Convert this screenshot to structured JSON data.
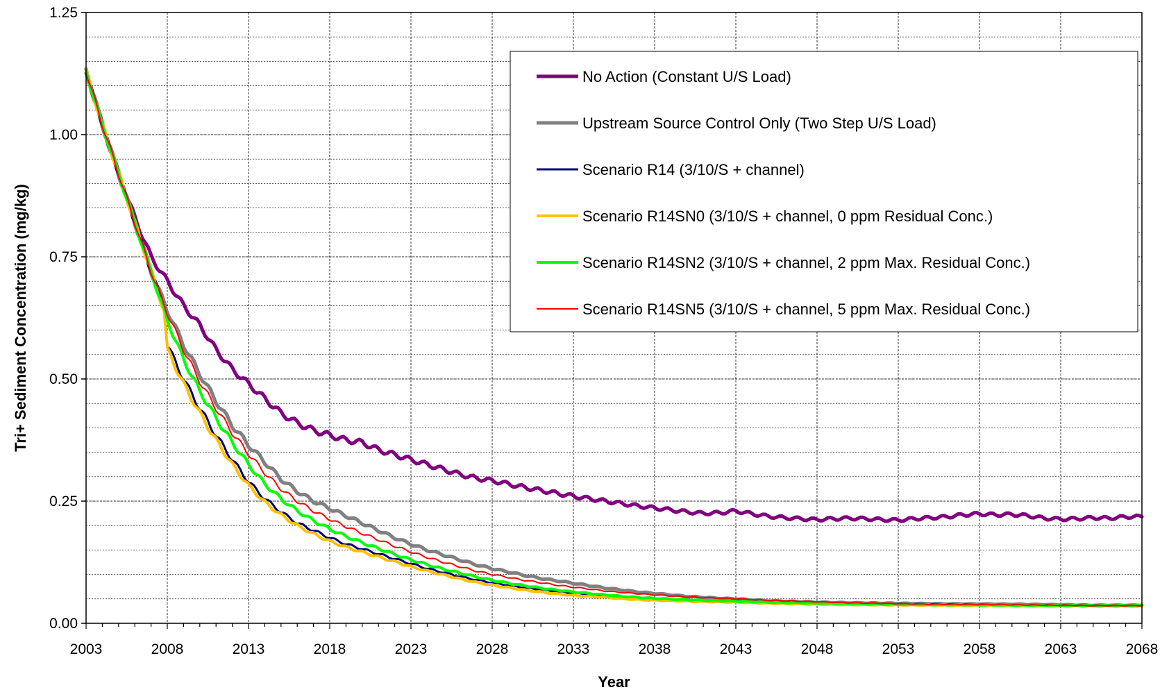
{
  "chart_data": {
    "type": "line",
    "title": "",
    "xlabel": "Year",
    "ylabel": "Tri+ Sediment Concentration (mg/kg)",
    "xlim": [
      2003,
      2068
    ],
    "ylim": [
      0,
      1.25
    ],
    "x_ticks": [
      "2003",
      "2008",
      "2013",
      "2018",
      "2023",
      "2028",
      "2033",
      "2038",
      "2043",
      "2048",
      "2053",
      "2058",
      "2063",
      "2068"
    ],
    "y_ticks": [
      "0.00",
      "0.25",
      "0.50",
      "0.75",
      "1.00",
      "1.25"
    ],
    "grid": true,
    "legend_position": "top-right",
    "series": [
      {
        "name": "No Action (Constant U/S Load)",
        "color": "#800080",
        "points": [
          [
            2003,
            1.13
          ],
          [
            2004,
            1.02
          ],
          [
            2005,
            0.92
          ],
          [
            2006,
            0.83
          ],
          [
            2007,
            0.75
          ],
          [
            2008,
            0.7
          ],
          [
            2009,
            0.65
          ],
          [
            2010,
            0.61
          ],
          [
            2011,
            0.56
          ],
          [
            2012,
            0.52
          ],
          [
            2013,
            0.49
          ],
          [
            2014,
            0.46
          ],
          [
            2015,
            0.43
          ],
          [
            2016,
            0.41
          ],
          [
            2017,
            0.395
          ],
          [
            2018,
            0.385
          ],
          [
            2019,
            0.375
          ],
          [
            2020,
            0.37
          ],
          [
            2021,
            0.355
          ],
          [
            2022,
            0.345
          ],
          [
            2023,
            0.335
          ],
          [
            2024,
            0.325
          ],
          [
            2025,
            0.315
          ],
          [
            2026,
            0.305
          ],
          [
            2027,
            0.297
          ],
          [
            2028,
            0.292
          ],
          [
            2029,
            0.285
          ],
          [
            2030,
            0.278
          ],
          [
            2031,
            0.272
          ],
          [
            2032,
            0.266
          ],
          [
            2033,
            0.26
          ],
          [
            2034,
            0.255
          ],
          [
            2035,
            0.25
          ],
          [
            2036,
            0.245
          ],
          [
            2037,
            0.24
          ],
          [
            2038,
            0.236
          ],
          [
            2039,
            0.232
          ],
          [
            2040,
            0.228
          ],
          [
            2041,
            0.225
          ],
          [
            2042,
            0.226
          ],
          [
            2043,
            0.23
          ],
          [
            2044,
            0.224
          ],
          [
            2045,
            0.219
          ],
          [
            2046,
            0.216
          ],
          [
            2047,
            0.214
          ],
          [
            2048,
            0.212
          ],
          [
            2049,
            0.214
          ],
          [
            2050,
            0.215
          ],
          [
            2051,
            0.214
          ],
          [
            2052,
            0.212
          ],
          [
            2053,
            0.211
          ],
          [
            2054,
            0.214
          ],
          [
            2055,
            0.216
          ],
          [
            2056,
            0.218
          ],
          [
            2057,
            0.222
          ],
          [
            2058,
            0.224
          ],
          [
            2059,
            0.222
          ],
          [
            2060,
            0.223
          ],
          [
            2061,
            0.22
          ],
          [
            2062,
            0.215
          ],
          [
            2063,
            0.213
          ],
          [
            2064,
            0.214
          ],
          [
            2065,
            0.216
          ],
          [
            2066,
            0.215
          ],
          [
            2067,
            0.218
          ],
          [
            2068,
            0.218
          ]
        ],
        "width": 5
      },
      {
        "name": "Upstream Source Control Only (Two Step U/S Load)",
        "color": "#808080",
        "points": [
          [
            2003,
            1.13
          ],
          [
            2004,
            1.02
          ],
          [
            2005,
            0.92
          ],
          [
            2006,
            0.82
          ],
          [
            2007,
            0.72
          ],
          [
            2008,
            0.64
          ],
          [
            2009,
            0.57
          ],
          [
            2010,
            0.51
          ],
          [
            2011,
            0.455
          ],
          [
            2012,
            0.405
          ],
          [
            2013,
            0.365
          ],
          [
            2014,
            0.33
          ],
          [
            2015,
            0.295
          ],
          [
            2016,
            0.27
          ],
          [
            2017,
            0.25
          ],
          [
            2018,
            0.235
          ],
          [
            2019,
            0.22
          ],
          [
            2020,
            0.205
          ],
          [
            2021,
            0.19
          ],
          [
            2022,
            0.175
          ],
          [
            2023,
            0.162
          ],
          [
            2024,
            0.15
          ],
          [
            2025,
            0.14
          ],
          [
            2026,
            0.13
          ],
          [
            2027,
            0.12
          ],
          [
            2028,
            0.112
          ],
          [
            2029,
            0.105
          ],
          [
            2030,
            0.098
          ],
          [
            2031,
            0.092
          ],
          [
            2032,
            0.087
          ],
          [
            2033,
            0.082
          ],
          [
            2034,
            0.077
          ],
          [
            2035,
            0.072
          ],
          [
            2036,
            0.068
          ],
          [
            2037,
            0.064
          ],
          [
            2038,
            0.061
          ],
          [
            2039,
            0.058
          ],
          [
            2040,
            0.055
          ],
          [
            2041,
            0.053
          ],
          [
            2042,
            0.051
          ],
          [
            2043,
            0.05
          ],
          [
            2044,
            0.048
          ],
          [
            2045,
            0.046
          ],
          [
            2046,
            0.045
          ],
          [
            2047,
            0.044
          ],
          [
            2048,
            0.043
          ],
          [
            2050,
            0.042
          ],
          [
            2055,
            0.04
          ],
          [
            2060,
            0.039
          ],
          [
            2065,
            0.037
          ],
          [
            2068,
            0.037
          ]
        ],
        "width": 5
      },
      {
        "name": "Scenario R14 (3/10/S + channel)",
        "color": "#000080",
        "points": [
          [
            2003,
            1.13
          ],
          [
            2004,
            1.02
          ],
          [
            2005,
            0.92
          ],
          [
            2006,
            0.82
          ],
          [
            2007,
            0.72
          ],
          [
            2007.8,
            0.65
          ],
          [
            2008,
            0.57
          ],
          [
            2009,
            0.5
          ],
          [
            2010,
            0.44
          ],
          [
            2011,
            0.385
          ],
          [
            2012,
            0.335
          ],
          [
            2013,
            0.29
          ],
          [
            2014,
            0.255
          ],
          [
            2015,
            0.228
          ],
          [
            2016,
            0.205
          ],
          [
            2017,
            0.19
          ],
          [
            2018,
            0.175
          ],
          [
            2019,
            0.162
          ],
          [
            2020,
            0.152
          ],
          [
            2021,
            0.142
          ],
          [
            2022,
            0.132
          ],
          [
            2023,
            0.122
          ],
          [
            2024,
            0.112
          ],
          [
            2025,
            0.104
          ],
          [
            2026,
            0.096
          ],
          [
            2027,
            0.089
          ],
          [
            2028,
            0.083
          ],
          [
            2029,
            0.078
          ],
          [
            2030,
            0.073
          ],
          [
            2031,
            0.069
          ],
          [
            2032,
            0.065
          ],
          [
            2033,
            0.062
          ],
          [
            2034,
            0.059
          ],
          [
            2035,
            0.056
          ],
          [
            2036,
            0.054
          ],
          [
            2037,
            0.052
          ],
          [
            2038,
            0.05
          ],
          [
            2040,
            0.047
          ],
          [
            2043,
            0.045
          ],
          [
            2045,
            0.043
          ],
          [
            2048,
            0.041
          ],
          [
            2050,
            0.04
          ],
          [
            2055,
            0.039
          ],
          [
            2060,
            0.037
          ],
          [
            2065,
            0.036
          ],
          [
            2068,
            0.035
          ]
        ],
        "width": 3
      },
      {
        "name": "Scenario R14SN0 (3/10/S + channel, 0 ppm Residual Conc.)",
        "color": "#FFC000",
        "points": [
          [
            2003,
            1.13
          ],
          [
            2004,
            1.02
          ],
          [
            2005,
            0.92
          ],
          [
            2006,
            0.82
          ],
          [
            2007,
            0.72
          ],
          [
            2007.8,
            0.64
          ],
          [
            2008,
            0.56
          ],
          [
            2009,
            0.49
          ],
          [
            2010,
            0.43
          ],
          [
            2011,
            0.375
          ],
          [
            2012,
            0.325
          ],
          [
            2013,
            0.282
          ],
          [
            2014,
            0.248
          ],
          [
            2015,
            0.222
          ],
          [
            2016,
            0.2
          ],
          [
            2017,
            0.183
          ],
          [
            2018,
            0.168
          ],
          [
            2019,
            0.156
          ],
          [
            2020,
            0.146
          ],
          [
            2021,
            0.136
          ],
          [
            2022,
            0.126
          ],
          [
            2023,
            0.116
          ],
          [
            2024,
            0.107
          ],
          [
            2025,
            0.099
          ],
          [
            2026,
            0.091
          ],
          [
            2027,
            0.084
          ],
          [
            2028,
            0.078
          ],
          [
            2029,
            0.073
          ],
          [
            2030,
            0.068
          ],
          [
            2031,
            0.064
          ],
          [
            2032,
            0.06
          ],
          [
            2033,
            0.057
          ],
          [
            2034,
            0.055
          ],
          [
            2035,
            0.053
          ],
          [
            2036,
            0.05
          ],
          [
            2038,
            0.047
          ],
          [
            2040,
            0.045
          ],
          [
            2043,
            0.043
          ],
          [
            2045,
            0.041
          ],
          [
            2048,
            0.039
          ],
          [
            2050,
            0.038
          ],
          [
            2055,
            0.037
          ],
          [
            2060,
            0.036
          ],
          [
            2065,
            0.035
          ],
          [
            2068,
            0.035
          ]
        ],
        "width": 4
      },
      {
        "name": "Scenario R14SN2 (3/10/S + channel, 2 ppm Max. Residual Conc.)",
        "color": "#00FF00",
        "points": [
          [
            2003,
            1.13
          ],
          [
            2004,
            1.02
          ],
          [
            2005,
            0.92
          ],
          [
            2006,
            0.82
          ],
          [
            2007,
            0.72
          ],
          [
            2008,
            0.62
          ],
          [
            2009,
            0.54
          ],
          [
            2010,
            0.475
          ],
          [
            2011,
            0.42
          ],
          [
            2012,
            0.37
          ],
          [
            2013,
            0.325
          ],
          [
            2014,
            0.285
          ],
          [
            2015,
            0.255
          ],
          [
            2016,
            0.23
          ],
          [
            2017,
            0.21
          ],
          [
            2018,
            0.193
          ],
          [
            2019,
            0.178
          ],
          [
            2020,
            0.165
          ],
          [
            2021,
            0.153
          ],
          [
            2022,
            0.141
          ],
          [
            2023,
            0.13
          ],
          [
            2024,
            0.12
          ],
          [
            2025,
            0.111
          ],
          [
            2026,
            0.103
          ],
          [
            2027,
            0.095
          ],
          [
            2028,
            0.088
          ],
          [
            2029,
            0.082
          ],
          [
            2030,
            0.077
          ],
          [
            2031,
            0.072
          ],
          [
            2032,
            0.068
          ],
          [
            2033,
            0.064
          ],
          [
            2034,
            0.061
          ],
          [
            2035,
            0.058
          ],
          [
            2036,
            0.055
          ],
          [
            2038,
            0.051
          ],
          [
            2040,
            0.048
          ],
          [
            2043,
            0.045
          ],
          [
            2045,
            0.043
          ],
          [
            2048,
            0.041
          ],
          [
            2050,
            0.04
          ],
          [
            2055,
            0.038
          ],
          [
            2060,
            0.037
          ],
          [
            2065,
            0.036
          ],
          [
            2068,
            0.036
          ]
        ],
        "width": 4
      },
      {
        "name": "Scenario R14SN5 (3/10/S + channel, 5 ppm Max. Residual Conc.)",
        "color": "#FF0000",
        "points": [
          [
            2003,
            1.13
          ],
          [
            2004,
            1.02
          ],
          [
            2005,
            0.92
          ],
          [
            2006,
            0.82
          ],
          [
            2007,
            0.72
          ],
          [
            2008,
            0.635
          ],
          [
            2009,
            0.56
          ],
          [
            2010,
            0.495
          ],
          [
            2011,
            0.44
          ],
          [
            2012,
            0.39
          ],
          [
            2013,
            0.347
          ],
          [
            2014,
            0.308
          ],
          [
            2015,
            0.275
          ],
          [
            2016,
            0.25
          ],
          [
            2017,
            0.23
          ],
          [
            2018,
            0.213
          ],
          [
            2019,
            0.198
          ],
          [
            2020,
            0.184
          ],
          [
            2021,
            0.171
          ],
          [
            2022,
            0.158
          ],
          [
            2023,
            0.146
          ],
          [
            2024,
            0.135
          ],
          [
            2025,
            0.125
          ],
          [
            2026,
            0.116
          ],
          [
            2027,
            0.107
          ],
          [
            2028,
            0.1
          ],
          [
            2029,
            0.094
          ],
          [
            2030,
            0.088
          ],
          [
            2031,
            0.083
          ],
          [
            2032,
            0.078
          ],
          [
            2033,
            0.074
          ],
          [
            2034,
            0.07
          ],
          [
            2035,
            0.066
          ],
          [
            2036,
            0.063
          ],
          [
            2038,
            0.058
          ],
          [
            2040,
            0.054
          ],
          [
            2043,
            0.05
          ],
          [
            2045,
            0.047
          ],
          [
            2048,
            0.044
          ],
          [
            2050,
            0.042
          ],
          [
            2055,
            0.039
          ],
          [
            2060,
            0.038
          ],
          [
            2065,
            0.036
          ],
          [
            2068,
            0.036
          ]
        ],
        "width": 2
      }
    ]
  }
}
